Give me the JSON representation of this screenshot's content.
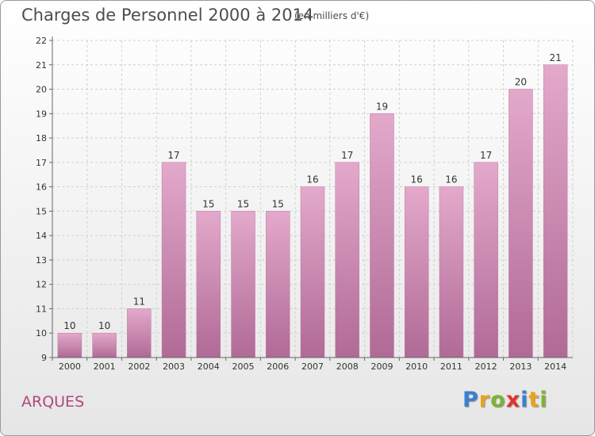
{
  "header": {
    "title": "Charges de Personnel 2000 à 2014",
    "unit": "(en milliers d'€)"
  },
  "footer": {
    "commune": "ARQUES",
    "logo": "Proxiti"
  },
  "logo_colors": [
    "#3a7fd0",
    "#e8a317",
    "#7cb332",
    "#e4322b",
    "#3a7fd0",
    "#e8a317",
    "#7cb332"
  ],
  "chart_data": {
    "type": "bar",
    "categories": [
      "2000",
      "2001",
      "2002",
      "2003",
      "2004",
      "2005",
      "2006",
      "2007",
      "2008",
      "2009",
      "2010",
      "2011",
      "2012",
      "2013",
      "2014"
    ],
    "values": [
      10,
      10,
      11,
      17,
      15,
      15,
      15,
      16,
      17,
      19,
      16,
      16,
      17,
      20,
      21
    ],
    "title": "Charges de Personnel 2000 à 2014",
    "ylim": [
      9,
      22
    ],
    "yticks": [
      9,
      10,
      11,
      12,
      13,
      14,
      15,
      16,
      17,
      18,
      19,
      20,
      21,
      22
    ],
    "grid": true,
    "bar_color": "#d890b8",
    "data_labels": true
  }
}
